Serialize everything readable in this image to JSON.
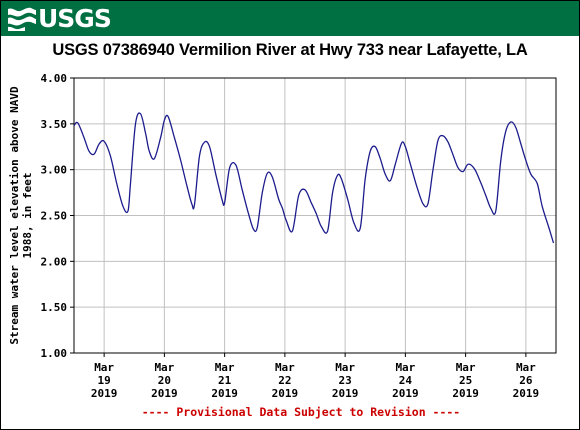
{
  "header": {
    "logo_text": "USGS",
    "title": "USGS 07386940 Vermilion River at Hwy 733 near Lafayette, LA"
  },
  "footer": {
    "provisional_note": "---- Provisional Data Subject to Revision ----"
  },
  "colors": {
    "banner": "#006f41",
    "series": "#1c1c8c",
    "grid": "#c0c0c0",
    "provisional": "#cc0000"
  },
  "chart_data": {
    "type": "line",
    "title": "USGS 07386940 Vermilion River at Hwy 733 near Lafayette, LA",
    "ylabel": "Stream water level elevation above NAVD 1988, in feet",
    "xlabel": "",
    "ylim": [
      1.0,
      4.0
    ],
    "yticks": [
      "4.00",
      "3.50",
      "3.00",
      "2.50",
      "2.00",
      "1.50",
      "1.00"
    ],
    "ytick_values": [
      4.0,
      3.5,
      3.0,
      2.5,
      2.0,
      1.5,
      1.0
    ],
    "xlim": [
      "2019-03-18 12:00",
      "2019-03-26 12:00"
    ],
    "xticks": [
      {
        "month": "Mar",
        "day": "19",
        "year": "2019"
      },
      {
        "month": "Mar",
        "day": "20",
        "year": "2019"
      },
      {
        "month": "Mar",
        "day": "21",
        "year": "2019"
      },
      {
        "month": "Mar",
        "day": "22",
        "year": "2019"
      },
      {
        "month": "Mar",
        "day": "23",
        "year": "2019"
      },
      {
        "month": "Mar",
        "day": "24",
        "year": "2019"
      },
      {
        "month": "Mar",
        "day": "25",
        "year": "2019"
      },
      {
        "month": "Mar",
        "day": "26",
        "year": "2019"
      }
    ],
    "grid": true,
    "legend": "none",
    "series": [
      {
        "x": [
          "2019-03-18 12:00",
          "2019-03-18 13:30",
          "2019-03-18 16:00",
          "2019-03-18 18:00",
          "2019-03-18 20:00",
          "2019-03-18 22:00",
          "2019-03-19 00:00",
          "2019-03-19 02:30",
          "2019-03-19 05:00",
          "2019-03-19 07:30",
          "2019-03-19 09:30",
          "2019-03-19 10:30",
          "2019-03-19 12:30",
          "2019-03-19 14:30",
          "2019-03-19 16:30",
          "2019-03-19 18:00",
          "2019-03-19 20:00",
          "2019-03-19 22:30",
          "2019-03-20 00:00",
          "2019-03-20 01:30",
          "2019-03-20 04:00",
          "2019-03-20 06:30",
          "2019-03-20 09:00",
          "2019-03-20 11:00",
          "2019-03-20 12:00",
          "2019-03-20 14:00",
          "2019-03-20 16:00",
          "2019-03-20 18:00",
          "2019-03-20 20:30",
          "2019-03-20 23:00",
          "2019-03-21 00:00",
          "2019-03-21 02:00",
          "2019-03-21 04:30",
          "2019-03-21 07:00",
          "2019-03-21 09:30",
          "2019-03-21 11:30",
          "2019-03-21 13:00",
          "2019-03-21 15:00",
          "2019-03-21 17:00",
          "2019-03-21 19:00",
          "2019-03-21 21:30",
          "2019-03-21 23:00",
          "2019-03-22 00:30",
          "2019-03-22 03:00",
          "2019-03-22 05:30",
          "2019-03-22 08:00",
          "2019-03-22 10:30",
          "2019-03-22 12:30",
          "2019-03-22 14:30",
          "2019-03-22 17:00",
          "2019-03-22 19:00",
          "2019-03-22 21:00",
          "2019-03-22 22:30",
          "2019-03-23 01:00",
          "2019-03-23 03:30",
          "2019-03-23 06:00",
          "2019-03-23 08:00",
          "2019-03-23 10:00",
          "2019-03-23 12:00",
          "2019-03-23 14:00",
          "2019-03-23 16:00",
          "2019-03-23 18:00",
          "2019-03-23 20:00",
          "2019-03-23 22:30",
          "2019-03-24 00:00",
          "2019-03-24 02:00",
          "2019-03-24 04:30",
          "2019-03-24 07:00",
          "2019-03-24 09:00",
          "2019-03-24 11:00",
          "2019-03-24 13:00",
          "2019-03-24 15:00",
          "2019-03-24 17:00",
          "2019-03-24 19:00",
          "2019-03-24 21:00",
          "2019-03-24 23:00",
          "2019-03-25 01:00",
          "2019-03-25 03:30",
          "2019-03-25 06:00",
          "2019-03-25 08:00",
          "2019-03-25 10:00",
          "2019-03-25 12:00",
          "2019-03-25 14:00",
          "2019-03-25 16:00",
          "2019-03-25 18:00",
          "2019-03-25 20:00",
          "2019-03-25 22:00",
          "2019-03-26 00:00",
          "2019-03-26 02:00",
          "2019-03-26 04:30",
          "2019-03-26 06:30",
          "2019-03-26 09:00",
          "2019-03-26 11:00"
        ],
        "y": [
          3.48,
          3.51,
          3.35,
          3.2,
          3.17,
          3.28,
          3.31,
          3.15,
          2.85,
          2.6,
          2.55,
          2.85,
          3.5,
          3.61,
          3.4,
          3.2,
          3.12,
          3.35,
          3.54,
          3.58,
          3.35,
          3.1,
          2.82,
          2.62,
          2.62,
          3.15,
          3.3,
          3.25,
          2.95,
          2.67,
          2.64,
          3.02,
          3.05,
          2.78,
          2.52,
          2.35,
          2.37,
          2.75,
          2.96,
          2.92,
          2.68,
          2.58,
          2.45,
          2.33,
          2.72,
          2.78,
          2.64,
          2.52,
          2.38,
          2.33,
          2.75,
          2.94,
          2.9,
          2.68,
          2.42,
          2.36,
          2.9,
          3.2,
          3.25,
          3.12,
          2.95,
          2.88,
          3.06,
          3.29,
          3.25,
          3.06,
          2.82,
          2.63,
          2.63,
          3.0,
          3.32,
          3.37,
          3.3,
          3.16,
          3.02,
          2.98,
          3.06,
          3.01,
          2.86,
          2.72,
          2.58,
          2.55,
          3.1,
          3.42,
          3.52,
          3.46,
          3.28,
          3.1,
          2.95,
          2.85,
          2.6,
          2.38,
          2.2
        ]
      }
    ]
  }
}
